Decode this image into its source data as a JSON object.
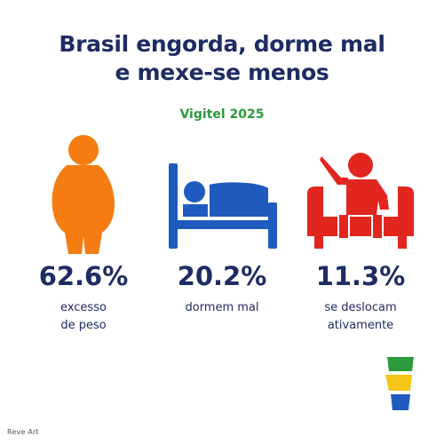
{
  "header": {
    "title_line1": "Brasil engorda, dorme mal",
    "title_line2": "e mexe-se menos",
    "subtitle": "Vigitel 2025"
  },
  "stats": [
    {
      "icon": "overweight-person-icon",
      "value": "62.6%",
      "label_line1": "excesso",
      "label_line2": "de peso",
      "color": "#f47c12"
    },
    {
      "icon": "bed-icon",
      "value": "20.2%",
      "label_line1": "dormem mal",
      "label_line2": "",
      "color": "#1f5bbf"
    },
    {
      "icon": "sofa-person-icon",
      "value": "11.3%",
      "label_line1": "se deslocam",
      "label_line2": "ativamente",
      "color": "#e0261f"
    }
  ],
  "logo": {
    "icon": "brand-logo",
    "colors": [
      "#2a9a3c",
      "#f5c518",
      "#1f5bbf"
    ]
  },
  "credit": "Reve Art"
}
